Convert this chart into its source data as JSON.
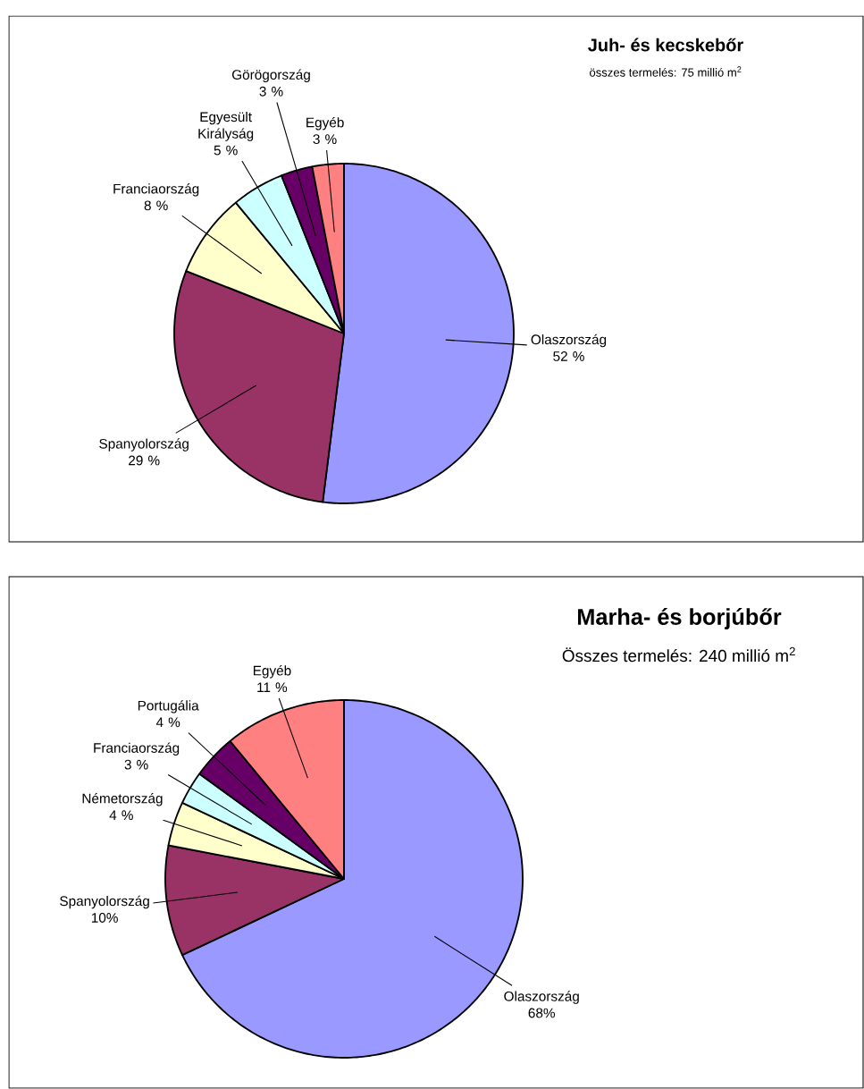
{
  "chart_data": [
    {
      "type": "pie",
      "title": "Juh- és kecskebőr",
      "subtitle": "összes termelés: 75 millió m$^{2}$",
      "categories": [
        "Olaszország",
        "Spanyolország",
        "Franciaország",
        "Egyesült Királyság",
        "Görögország",
        "Egyéb"
      ],
      "values": [
        52,
        29,
        8,
        5,
        3,
        3
      ],
      "value_labels": [
        "52 %",
        "29 %",
        "8 %",
        "5 %",
        "3 %",
        "3 %"
      ],
      "colors": [
        "#9999ff",
        "#993366",
        "#ffffcc",
        "#ccffff",
        "#660066",
        "#ff8080"
      ]
    },
    {
      "type": "pie",
      "title": "Marha- és borjúbőr",
      "subtitle": "Összes termelés: 240 millió m$^{2}$",
      "categories": [
        "Olaszország",
        "Spanyolország",
        "Németország",
        "Franciaország",
        "Portugália",
        "Egyéb"
      ],
      "values": [
        68,
        10,
        4,
        3,
        4,
        11
      ],
      "value_labels": [
        "68%",
        "10%",
        "4 %",
        "3 %",
        "4 %",
        "11 %"
      ],
      "colors": [
        "#9999ff",
        "#993366",
        "#ffffcc",
        "#ccffff",
        "#660066",
        "#ff8080"
      ]
    }
  ]
}
